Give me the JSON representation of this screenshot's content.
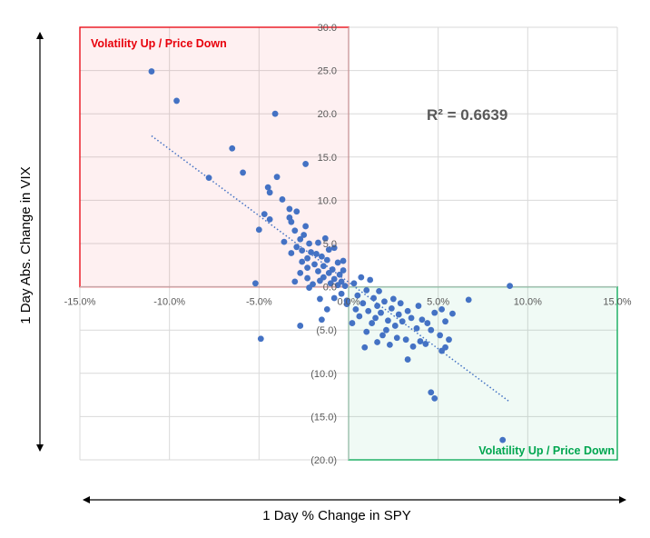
{
  "chart_data": {
    "type": "scatter",
    "title": "",
    "xlabel": "1 Day % Change in SPY",
    "ylabel": "1 Day Abs. Change in VIX",
    "xlim": [
      -15,
      15
    ],
    "ylim": [
      -20,
      30
    ],
    "x_ticks": [
      -15,
      -10,
      -5,
      0,
      5,
      10,
      15
    ],
    "x_tick_labels": [
      "-15.0%",
      "-10.0%",
      "-5.0%",
      "0.0%",
      "5.0%",
      "10.0%",
      "15.0%"
    ],
    "y_ticks": [
      30,
      25,
      20,
      15,
      10,
      5,
      0,
      -5,
      -10,
      -15,
      -20
    ],
    "y_tick_labels": [
      "30.0",
      "25.0",
      "20.0",
      "15.0",
      "10.0",
      "5.0",
      "0.0",
      "(5.0)",
      "(10.0)",
      "(15.0)",
      "(20.0)"
    ],
    "grid": true,
    "legend": "none",
    "marker_color": "#4472C4",
    "trendline": {
      "type": "linear",
      "x_range": [
        -11,
        9
      ],
      "color": "#4472C4",
      "style": "dotted"
    },
    "r_squared_label": "R² = 0.6639",
    "quadrants": [
      {
        "label": "Volatility Up / Price Down",
        "x_range": [
          -15,
          0
        ],
        "y_range": [
          0,
          30
        ],
        "color": "#E8000B"
      },
      {
        "label": "Volatility Up / Price Down",
        "x_range": [
          0,
          15
        ],
        "y_range": [
          -20,
          0
        ],
        "color": "#00A650"
      }
    ],
    "series": [
      {
        "values": [
          [
            -11.0,
            24.9
          ],
          [
            -9.6,
            21.5
          ],
          [
            -4.1,
            20.0
          ],
          [
            -6.5,
            16.0
          ],
          [
            -5.9,
            13.2
          ],
          [
            -7.8,
            12.6
          ],
          [
            -4.0,
            12.7
          ],
          [
            -2.4,
            14.2
          ],
          [
            -4.5,
            11.5
          ],
          [
            -4.4,
            10.9
          ],
          [
            -3.7,
            10.1
          ],
          [
            -3.3,
            9.0
          ],
          [
            -2.9,
            8.7
          ],
          [
            -4.7,
            8.4
          ],
          [
            -4.4,
            7.8
          ],
          [
            -3.3,
            8.0
          ],
          [
            -3.2,
            7.5
          ],
          [
            -2.4,
            7.0
          ],
          [
            -5.0,
            6.6
          ],
          [
            -3.0,
            6.5
          ],
          [
            -2.5,
            6.0
          ],
          [
            -2.7,
            5.5
          ],
          [
            -2.2,
            5.0
          ],
          [
            -2.9,
            4.6
          ],
          [
            -2.6,
            4.2
          ],
          [
            -2.1,
            4.0
          ],
          [
            -3.2,
            3.9
          ],
          [
            -1.8,
            3.8
          ],
          [
            -1.5,
            3.5
          ],
          [
            -2.3,
            3.3
          ],
          [
            -1.2,
            3.1
          ],
          [
            -2.6,
            2.9
          ],
          [
            -1.9,
            2.6
          ],
          [
            -1.4,
            2.4
          ],
          [
            -2.3,
            2.2
          ],
          [
            -0.9,
            2.0
          ],
          [
            -1.7,
            1.8
          ],
          [
            -1.1,
            1.6
          ],
          [
            -2.7,
            1.6
          ],
          [
            -0.5,
            1.4
          ],
          [
            -1.4,
            1.1
          ],
          [
            -2.3,
            1.0
          ],
          [
            -0.8,
            0.9
          ],
          [
            -1.6,
            0.7
          ],
          [
            -0.4,
            0.6
          ],
          [
            -1.0,
            0.4
          ],
          [
            -2.0,
            0.3
          ],
          [
            -0.6,
            0.2
          ],
          [
            -3.0,
            0.6
          ],
          [
            -0.2,
            0.1
          ],
          [
            -1.3,
            5.6
          ],
          [
            -1.7,
            5.1
          ],
          [
            -3.6,
            5.2
          ],
          [
            -0.8,
            4.5
          ],
          [
            -1.1,
            4.3
          ],
          [
            -0.3,
            3.0
          ],
          [
            -0.6,
            2.8
          ],
          [
            -0.3,
            1.9
          ],
          [
            -5.2,
            0.4
          ],
          [
            -2.2,
            -0.1
          ],
          [
            -2.7,
            -4.5
          ],
          [
            -4.9,
            -6.0
          ],
          [
            -1.5,
            -3.8
          ],
          [
            -1.2,
            -2.6
          ],
          [
            -1.6,
            -1.4
          ],
          [
            -0.4,
            -0.8
          ],
          [
            -0.8,
            -1.3
          ],
          [
            -0.1,
            -2.0
          ],
          [
            0.3,
            0.4
          ],
          [
            0.7,
            1.1
          ],
          [
            0.5,
            -1.0
          ],
          [
            1.2,
            0.8
          ],
          [
            1.0,
            -0.4
          ],
          [
            1.4,
            -1.3
          ],
          [
            0.8,
            -1.9
          ],
          [
            1.6,
            -2.2
          ],
          [
            1.1,
            -2.8
          ],
          [
            2.0,
            -1.7
          ],
          [
            1.8,
            -3.0
          ],
          [
            2.4,
            -2.5
          ],
          [
            1.5,
            -3.6
          ],
          [
            2.2,
            -3.9
          ],
          [
            0.6,
            -3.4
          ],
          [
            2.8,
            -3.2
          ],
          [
            1.3,
            -4.2
          ],
          [
            2.6,
            -4.5
          ],
          [
            3.0,
            -4.0
          ],
          [
            3.3,
            -2.8
          ],
          [
            2.1,
            -5.0
          ],
          [
            1.9,
            -5.6
          ],
          [
            3.5,
            -3.6
          ],
          [
            2.7,
            -5.9
          ],
          [
            3.8,
            -4.8
          ],
          [
            4.1,
            -3.8
          ],
          [
            3.2,
            -6.1
          ],
          [
            4.4,
            -4.2
          ],
          [
            1.6,
            -6.4
          ],
          [
            4.0,
            -6.3
          ],
          [
            3.6,
            -6.9
          ],
          [
            4.3,
            -6.6
          ],
          [
            5.1,
            -5.6
          ],
          [
            4.6,
            -5.0
          ],
          [
            5.4,
            -4.0
          ],
          [
            5.8,
            -3.1
          ],
          [
            6.7,
            -1.5
          ],
          [
            5.6,
            -6.1
          ],
          [
            5.4,
            -7.0
          ],
          [
            5.2,
            -7.4
          ],
          [
            3.3,
            -8.4
          ],
          [
            0.9,
            -7.0
          ],
          [
            0.2,
            -4.2
          ],
          [
            -0.1,
            -1.6
          ],
          [
            4.6,
            -12.2
          ],
          [
            4.8,
            -12.9
          ],
          [
            8.6,
            -17.7
          ],
          [
            9.0,
            0.1
          ],
          [
            5.2,
            -2.6
          ],
          [
            2.5,
            -1.4
          ],
          [
            1.7,
            -0.5
          ],
          [
            0.4,
            -2.6
          ],
          [
            2.9,
            -1.9
          ],
          [
            3.9,
            -2.2
          ],
          [
            4.8,
            -3.0
          ],
          [
            2.3,
            -6.7
          ],
          [
            1.0,
            -5.2
          ]
        ]
      }
    ]
  }
}
